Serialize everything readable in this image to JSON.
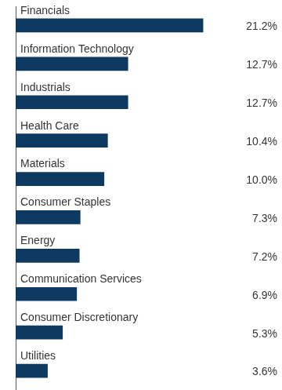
{
  "chart_data": {
    "type": "bar",
    "orientation": "horizontal",
    "categories": [
      "Financials",
      "Information Technology",
      "Industrials",
      "Health Care",
      "Materials",
      "Consumer Staples",
      "Energy",
      "Communication Services",
      "Consumer Discretionary",
      "Utilities"
    ],
    "values": [
      21.2,
      12.7,
      12.7,
      10.4,
      10.0,
      7.3,
      7.2,
      6.9,
      5.3,
      3.6
    ],
    "value_labels": [
      "21.2%",
      "12.7%",
      "12.7%",
      "10.4%",
      "10.0%",
      "7.3%",
      "7.2%",
      "6.9%",
      "5.3%",
      "3.6%"
    ],
    "color": "#0e3a62",
    "data_labels": true,
    "grid": false
  }
}
